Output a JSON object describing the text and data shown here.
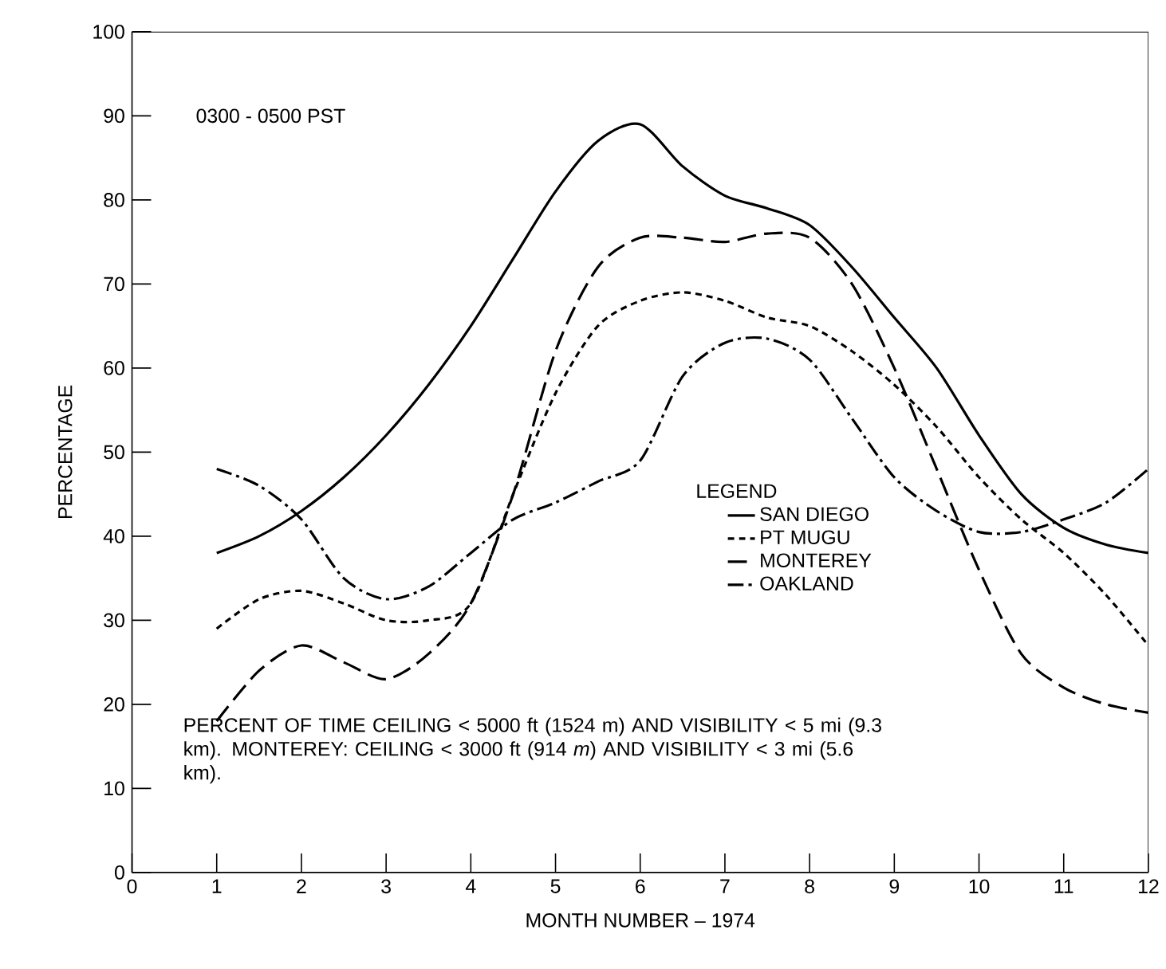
{
  "chart_data": {
    "type": "line",
    "xlabel": "MONTH NUMBER – 1974",
    "ylabel": "PERCENTAGE",
    "legend_title": "LEGEND",
    "legend": "right",
    "xlim": [
      0,
      12
    ],
    "ylim": [
      0,
      100
    ],
    "xticks": [
      0,
      1,
      2,
      3,
      4,
      5,
      6,
      7,
      8,
      9,
      10,
      11,
      12
    ],
    "yticks": [
      0,
      10,
      20,
      30,
      40,
      50,
      60,
      70,
      80,
      90,
      100
    ],
    "grid": false,
    "annotations": [
      "0300 - 0500 PST",
      "PERCENT OF TIME CEILING < 5000 ft (1524 m) AND VISIBILITY < 5 mi (9.3 km). MONTEREY:  CEILING < 3000 ft (914 *m*) AND VISIBILITY < 3 mi (5.6 km)."
    ],
    "x": [
      1,
      1.5,
      2,
      2.5,
      3,
      3.5,
      4,
      4.5,
      5,
      5.5,
      6,
      6.5,
      7,
      7.5,
      8,
      8.5,
      9,
      9.5,
      10,
      10.5,
      11,
      11.5,
      12
    ],
    "series": [
      {
        "name": "SAN DIEGO",
        "color": "#000000",
        "line_style": "solid",
        "values": [
          38,
          40,
          43,
          47,
          52,
          58,
          65,
          73,
          81,
          87,
          89,
          84,
          80.5,
          79,
          77,
          72,
          66,
          60,
          52,
          45,
          41,
          39,
          38
        ]
      },
      {
        "name": "PT MUGU",
        "color": "#000000",
        "line_style": "dotted",
        "values": [
          29,
          32.5,
          33.5,
          32,
          30,
          30,
          32,
          45,
          57,
          65,
          68,
          69,
          68,
          66,
          65,
          62,
          58,
          53,
          47,
          42,
          38,
          33,
          27
        ]
      },
      {
        "name": "MONTEREY",
        "color": "#000000",
        "line_style": "dashed",
        "values": [
          18,
          24,
          27,
          25,
          23,
          26,
          32,
          45,
          62,
          72,
          75.5,
          75.5,
          75,
          76,
          75.5,
          70,
          60,
          48,
          36,
          26,
          22,
          20,
          19
        ]
      },
      {
        "name": "OAKLAND",
        "color": "#000000",
        "line_style": "dashdot",
        "values": [
          48,
          46,
          42,
          35,
          32.5,
          34,
          38,
          42,
          44,
          46.5,
          49,
          59,
          63,
          63.5,
          61,
          54,
          47,
          43,
          40.5,
          40.5,
          42,
          44,
          48
        ]
      }
    ]
  }
}
